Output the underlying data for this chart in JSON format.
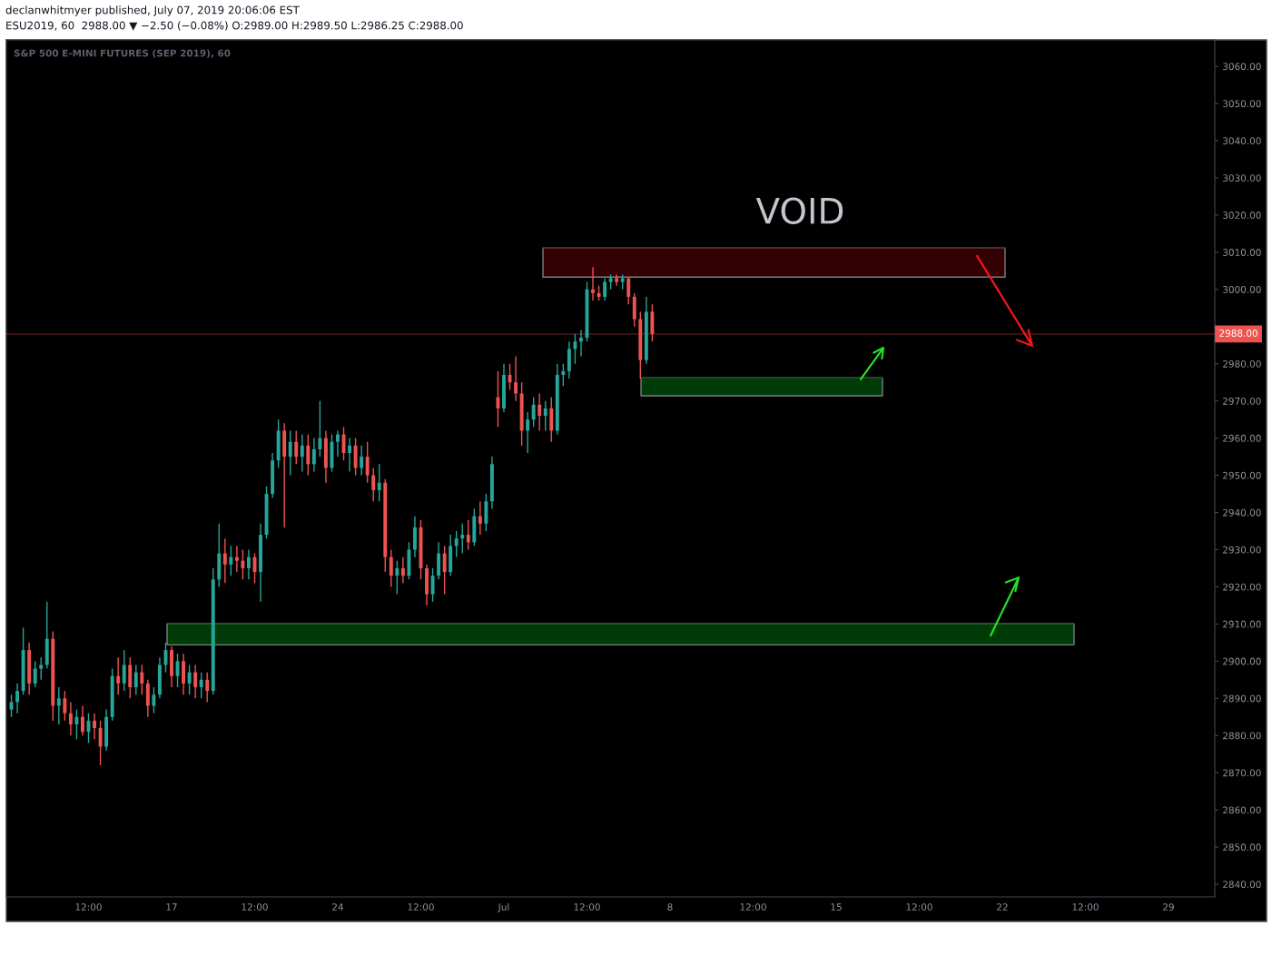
{
  "chart_data": {
    "type": "candlestick",
    "title": "S&P 500 E-MINI FUTURES (SEP 2019), 60",
    "subtitle": "ESU2019, 60  2988.00 ▼ −2.50 (−0.08%) O:2989.00 H:2989.50 L:2986.25 C:2988.00",
    "annotations": [
      "declanwhitmyer published, July 07, 2019 20:06:06 EST",
      "VOID"
    ],
    "x": [
      "2019-06-10T06:00",
      "2019-06-10T12:00",
      "2019-06-10T18:00",
      "2019-06-11T00:00",
      "2019-06-11T06:00",
      "2019-06-11T12:00",
      "2019-06-11T18:00",
      "2019-06-12T00:00",
      "2019-06-12T06:00",
      "2019-06-12T12:00",
      "2019-06-12T18:00",
      "2019-06-13T00:00",
      "2019-06-13T06:00",
      "2019-06-13T12:00",
      "2019-06-13T18:00",
      "2019-06-14T00:00",
      "2019-06-14T06:00",
      "2019-06-14T12:00",
      "2019-06-14T18:00",
      "2019-06-15T00:00",
      "2019-06-15T06:00",
      "2019-06-15T12:00",
      "2019-06-15T18:00",
      "2019-06-16T00:00",
      "2019-06-16T06:00",
      "2019-06-16T12:00",
      "2019-06-16T18:00",
      "2019-06-17T00:00",
      "2019-06-17T06:00",
      "2019-06-17T12:00",
      "2019-06-17T18:00",
      "2019-06-18T00:00",
      "2019-06-18T06:00",
      "2019-06-18T12:00",
      "2019-06-18T18:00",
      "2019-06-19T00:00",
      "2019-06-19T06:00",
      "2019-06-19T12:00",
      "2019-06-19T18:00",
      "2019-06-20T00:00",
      "2019-06-20T06:00",
      "2019-06-20T12:00",
      "2019-06-20T18:00",
      "2019-06-21T00:00",
      "2019-06-21T06:00",
      "2019-06-21T12:00",
      "2019-06-21T18:00",
      "2019-06-22T00:00",
      "2019-06-22T06:00",
      "2019-06-22T12:00",
      "2019-06-22T18:00",
      "2019-06-23T00:00",
      "2019-06-23T06:00",
      "2019-06-23T12:00",
      "2019-06-23T18:00",
      "2019-06-24T00:00",
      "2019-06-24T06:00",
      "2019-06-24T12:00",
      "2019-06-24T18:00",
      "2019-06-25T00:00",
      "2019-06-25T06:00",
      "2019-06-25T12:00",
      "2019-06-25T18:00",
      "2019-06-26T00:00",
      "2019-06-26T06:00",
      "2019-06-26T12:00",
      "2019-06-26T18:00",
      "2019-06-27T00:00",
      "2019-06-27T06:00",
      "2019-06-27T12:00",
      "2019-06-27T18:00",
      "2019-06-28T00:00",
      "2019-06-28T06:00",
      "2019-06-28T12:00",
      "2019-06-28T18:00",
      "2019-06-29T00:00",
      "2019-06-29T06:00",
      "2019-06-29T12:00",
      "2019-06-29T18:00",
      "2019-06-30T00:00",
      "2019-06-30T06:00",
      "2019-06-30T12:00",
      "2019-06-30T18:00",
      "2019-07-01T00:00",
      "2019-07-01T06:00",
      "2019-07-01T12:00",
      "2019-07-01T18:00",
      "2019-07-02T00:00",
      "2019-07-02T06:00",
      "2019-07-02T12:00",
      "2019-07-02T18:00",
      "2019-07-03T00:00",
      "2019-07-03T06:00",
      "2019-07-03T12:00",
      "2019-07-03T18:00",
      "2019-07-04T00:00",
      "2019-07-04T06:00",
      "2019-07-04T12:00",
      "2019-07-04T18:00",
      "2019-07-05T00:00",
      "2019-07-05T06:00",
      "2019-07-05T12:00",
      "2019-07-05T18:00",
      "2019-07-06T00:00",
      "2019-07-06T06:00",
      "2019-07-06T12:00",
      "2019-07-06T18:00",
      "2019-07-07T00:00",
      "2019-07-07T06:00"
    ],
    "ohlc": [
      [
        2887,
        2891,
        2885,
        2889
      ],
      [
        2889,
        2894,
        2886,
        2892
      ],
      [
        2892,
        2909,
        2891,
        2903
      ],
      [
        2903,
        2905,
        2891,
        2894
      ],
      [
        2894,
        2900,
        2893,
        2898
      ],
      [
        2898,
        2901,
        2895,
        2899
      ],
      [
        2899,
        2916,
        2898,
        2906
      ],
      [
        2906,
        2908,
        2884,
        2888
      ],
      [
        2888,
        2893,
        2883,
        2890
      ],
      [
        2890,
        2892,
        2884,
        2886
      ],
      [
        2886,
        2889,
        2880,
        2883
      ],
      [
        2883,
        2887,
        2879,
        2885
      ],
      [
        2885,
        2888,
        2880,
        2881
      ],
      [
        2881,
        2886,
        2878,
        2884
      ],
      [
        2884,
        2886,
        2879,
        2882
      ],
      [
        2882,
        2884,
        2872,
        2877
      ],
      [
        2877,
        2887,
        2876,
        2885
      ],
      [
        2885,
        2898,
        2884,
        2896
      ],
      [
        2896,
        2901,
        2891,
        2894
      ],
      [
        2894,
        2903,
        2892,
        2899
      ],
      [
        2899,
        2901,
        2890,
        2893
      ],
      [
        2893,
        2899,
        2891,
        2897
      ],
      [
        2897,
        2899,
        2891,
        2894
      ],
      [
        2894,
        2895,
        2885,
        2888
      ],
      [
        2888,
        2893,
        2886,
        2891
      ],
      [
        2891,
        2901,
        2890,
        2899
      ],
      [
        2899,
        2905,
        2897,
        2903
      ],
      [
        2903,
        2904,
        2893,
        2896
      ],
      [
        2896,
        2902,
        2893,
        2900
      ],
      [
        2900,
        2902,
        2891,
        2894
      ],
      [
        2894,
        2899,
        2891,
        2897
      ],
      [
        2897,
        2899,
        2890,
        2893
      ],
      [
        2893,
        2897,
        2890,
        2895
      ],
      [
        2895,
        2897,
        2889,
        2892
      ],
      [
        2892,
        2925,
        2891,
        2922
      ],
      [
        2922,
        2937,
        2920,
        2929
      ],
      [
        2929,
        2933,
        2921,
        2926
      ],
      [
        2926,
        2931,
        2923,
        2928
      ],
      [
        2928,
        2931,
        2924,
        2927
      ],
      [
        2927,
        2930,
        2922,
        2925
      ],
      [
        2925,
        2930,
        2922,
        2928
      ],
      [
        2928,
        2929,
        2921,
        2924
      ],
      [
        2924,
        2937,
        2916,
        2934
      ],
      [
        2934,
        2947,
        2933,
        2945
      ],
      [
        2945,
        2956,
        2944,
        2954
      ],
      [
        2954,
        2965,
        2952,
        2962
      ],
      [
        2962,
        2964,
        2936,
        2955
      ],
      [
        2955,
        2962,
        2950,
        2959
      ],
      [
        2959,
        2962,
        2953,
        2955
      ],
      [
        2955,
        2961,
        2951,
        2958
      ],
      [
        2958,
        2961,
        2950,
        2953
      ],
      [
        2953,
        2960,
        2951,
        2957
      ],
      [
        2957,
        2970,
        2955,
        2960
      ],
      [
        2960,
        2962,
        2948,
        2952
      ],
      [
        2952,
        2961,
        2951,
        2959
      ],
      [
        2959,
        2962,
        2955,
        2961
      ],
      [
        2961,
        2963,
        2954,
        2956
      ],
      [
        2956,
        2960,
        2951,
        2958
      ],
      [
        2958,
        2960,
        2950,
        2952
      ],
      [
        2952,
        2958,
        2950,
        2955
      ],
      [
        2955,
        2959,
        2948,
        2950
      ],
      [
        2950,
        2952,
        2943,
        2946
      ],
      [
        2946,
        2953,
        2943,
        2948
      ],
      [
        2948,
        2949,
        2924,
        2928
      ],
      [
        2928,
        2930,
        2920,
        2923
      ],
      [
        2923,
        2927,
        2918,
        2925
      ],
      [
        2925,
        2928,
        2921,
        2923
      ],
      [
        2923,
        2932,
        2922,
        2930
      ],
      [
        2930,
        2939,
        2928,
        2936
      ],
      [
        2936,
        2938,
        2922,
        2925
      ],
      [
        2925,
        2926,
        2915,
        2918
      ],
      [
        2918,
        2925,
        2916,
        2923
      ],
      [
        2923,
        2932,
        2922,
        2929
      ],
      [
        2929,
        2931,
        2918,
        2924
      ],
      [
        2924,
        2934,
        2923,
        2931
      ],
      [
        2931,
        2935,
        2928,
        2933
      ],
      [
        2933,
        2937,
        2929,
        2934
      ],
      [
        2934,
        2938,
        2930,
        2932
      ],
      [
        2932,
        2941,
        2931,
        2939
      ],
      [
        2939,
        2943,
        2934,
        2937
      ],
      [
        2937,
        2945,
        2935,
        2943
      ],
      [
        2943,
        2955,
        2941,
        2953
      ],
      [
        2971,
        2978,
        2963,
        2968
      ],
      [
        2968,
        2980,
        2967,
        2977
      ],
      [
        2977,
        2980,
        2973,
        2975
      ],
      [
        2975,
        2982,
        2970,
        2972
      ],
      [
        2972,
        2975,
        2958,
        2962
      ],
      [
        2962,
        2967,
        2956,
        2965
      ],
      [
        2965,
        2971,
        2963,
        2969
      ],
      [
        2969,
        2972,
        2962,
        2966
      ],
      [
        2966,
        2970,
        2962,
        2968
      ],
      [
        2968,
        2971,
        2959,
        2962
      ],
      [
        2962,
        2980,
        2961,
        2977
      ],
      [
        2977,
        2980,
        2974,
        2978
      ],
      [
        2978,
        2986,
        2976,
        2984
      ],
      [
        2984,
        2988,
        2980,
        2986
      ],
      [
        2986,
        2989,
        2982,
        2987
      ],
      [
        2987,
        3002,
        2986,
        3000
      ],
      [
        3000,
        3006,
        2997,
        2999
      ],
      [
        2999,
        3001,
        2997,
        2998
      ],
      [
        2998,
        3003,
        2997,
        3002
      ],
      [
        3002,
        3004,
        3000,
        3003
      ],
      [
        3003,
        3004,
        3001,
        3002
      ],
      [
        3002,
        3004,
        3000,
        3003
      ],
      [
        3003,
        3003,
        2996,
        2998
      ],
      [
        2998,
        2999,
        2990,
        2992
      ],
      [
        2992,
        2994,
        2976,
        2981
      ],
      [
        2981,
        2998,
        2980,
        2994
      ],
      [
        2994,
        2996,
        2986,
        2988
      ]
    ],
    "colors": [
      "#26a69a",
      "#26a69a",
      "#26a69a",
      "#ef5350",
      "#26a69a",
      "#26a69a",
      "#26a69a",
      "#ef5350",
      "#26a69a",
      "#ef5350",
      "#ef5350",
      "#26a69a",
      "#ef5350",
      "#26a69a",
      "#ef5350",
      "#ef5350",
      "#26a69a",
      "#26a69a",
      "#ef5350",
      "#26a69a",
      "#ef5350",
      "#26a69a",
      "#ef5350",
      "#ef5350",
      "#26a69a",
      "#26a69a",
      "#26a69a",
      "#ef5350",
      "#26a69a",
      "#ef5350",
      "#26a69a",
      "#ef5350",
      "#26a69a",
      "#ef5350",
      "#26a69a",
      "#26a69a",
      "#ef5350",
      "#26a69a",
      "#ef5350",
      "#ef5350",
      "#26a69a",
      "#ef5350",
      "#26a69a",
      "#26a69a",
      "#26a69a",
      "#26a69a",
      "#ef5350",
      "#26a69a",
      "#ef5350",
      "#26a69a",
      "#ef5350",
      "#26a69a",
      "#26a69a",
      "#ef5350",
      "#26a69a",
      "#26a69a",
      "#ef5350",
      "#26a69a",
      "#ef5350",
      "#26a69a",
      "#ef5350",
      "#ef5350",
      "#26a69a",
      "#ef5350",
      "#ef5350",
      "#26a69a",
      "#ef5350",
      "#26a69a",
      "#26a69a",
      "#ef5350",
      "#ef5350",
      "#26a69a",
      "#26a69a",
      "#ef5350",
      "#26a69a",
      "#26a69a",
      "#26a69a",
      "#ef5350",
      "#26a69a",
      "#ef5350",
      "#26a69a",
      "#26a69a",
      "#ef5350",
      "#26a69a",
      "#ef5350",
      "#ef5350",
      "#ef5350",
      "#26a69a",
      "#26a69a",
      "#ef5350",
      "#26a69a",
      "#ef5350",
      "#26a69a",
      "#26a69a",
      "#26a69a",
      "#26a69a",
      "#26a69a",
      "#26a69a",
      "#ef5350",
      "#ef5350",
      "#26a69a",
      "#26a69a",
      "#ef5350",
      "#26a69a",
      "#ef5350",
      "#ef5350",
      "#ef5350",
      "#26a69a",
      "#ef5350"
    ],
    "xlim": [
      "2019-06-10T00:55",
      "2019-07-30T22:50"
    ],
    "xticks": [
      {
        "value": "2019-06-13T12:00",
        "label": "12:00"
      },
      {
        "value": "2019-06-17",
        "label": "17"
      },
      {
        "value": "2019-06-20T12:00",
        "label": "12:00"
      },
      {
        "value": "2019-06-24",
        "label": "24"
      },
      {
        "value": "2019-06-27T12:00",
        "label": "12:00"
      },
      {
        "value": "2019-07-01",
        "label": "Jul"
      },
      {
        "value": "2019-07-04T12:00",
        "label": "12:00"
      },
      {
        "value": "2019-07-08",
        "label": "8"
      },
      {
        "value": "2019-07-11T12:00",
        "label": "12:00"
      },
      {
        "value": "2019-07-15",
        "label": "15"
      },
      {
        "value": "2019-07-18T12:00",
        "label": "12:00"
      },
      {
        "value": "2019-07-22",
        "label": "22"
      },
      {
        "value": "2019-07-25T12:00",
        "label": "12:00"
      },
      {
        "value": "2019-07-29",
        "label": "29"
      }
    ],
    "ylim": [
      2836.6,
      3067.1
    ],
    "yticks": [
      {
        "value": 2840,
        "label": "2840.00"
      },
      {
        "value": 2850,
        "label": "2850.00"
      },
      {
        "value": 2860,
        "label": "2860.00"
      },
      {
        "value": 2870,
        "label": "2870.00"
      },
      {
        "value": 2880,
        "label": "2880.00"
      },
      {
        "value": 2890,
        "label": "2890.00"
      },
      {
        "value": 2900,
        "label": "2900.00"
      },
      {
        "value": 2910,
        "label": "2910.00"
      },
      {
        "value": 2920,
        "label": "2920.00"
      },
      {
        "value": 2930,
        "label": "2930.00"
      },
      {
        "value": 2940,
        "label": "2940.00"
      },
      {
        "value": 2950,
        "label": "2950.00"
      },
      {
        "value": 2960,
        "label": "2960.00"
      },
      {
        "value": 2970,
        "label": "2970.00"
      },
      {
        "value": 2980,
        "label": "2980.00"
      },
      {
        "value": 3000,
        "label": "3000.00"
      },
      {
        "value": 3010,
        "label": "3010.00"
      },
      {
        "value": 3020,
        "label": "3020.00"
      },
      {
        "value": 3030,
        "label": "3030.00"
      },
      {
        "value": 3040,
        "label": "3040.00"
      },
      {
        "value": 3050,
        "label": "3050.00"
      },
      {
        "value": 3060,
        "label": "3060.00"
      }
    ],
    "ref_lines": [
      {
        "axis": "y",
        "value": 2988.0,
        "label": "2988.00",
        "color": "#ef5350"
      }
    ],
    "series": [
      {
        "type": "line",
        "color": "#330004",
        "x": [
          "2019-07-02T15:30",
          "2019-07-22T02:45"
        ],
        "values": [
          3011.2,
          3011.2
        ],
        "lower": [
          3003.3,
          3003.3
        ],
        "upper": [
          3011.2,
          3011.2
        ]
      },
      {
        "type": "line",
        "color": "#003a06",
        "x": [
          "2019-07-06T18:40",
          "2019-07-16T22:50"
        ],
        "values": [
          2976.2,
          2976.2
        ],
        "lower": [
          2971.4,
          2971.4
        ],
        "upper": [
          2976.2,
          2976.2
        ]
      },
      {
        "type": "line",
        "color": "#003a06",
        "x": [
          "2019-06-16T19:25",
          "2019-07-25T00:30"
        ],
        "values": [
          2910.1,
          2910.1
        ],
        "lower": [
          2904.4,
          2904.4
        ],
        "upper": [
          2910.1,
          2910.1
        ]
      },
      {
        "type": "line",
        "color": "#f01818",
        "x": [
          "2019-07-20T22:25",
          "2019-07-23T06:15",
          "2019-07-23T02:25",
          "2019-07-23T06:15",
          "2019-07-22T14:50"
        ],
        "values": [
          3009.0,
          2984.8,
          2989.1,
          2984.8,
          2986.4
        ]
      },
      {
        "type": "line",
        "color": "#22e022",
        "x": [
          "2019-07-16T00:45",
          "2019-07-16T23:45",
          "2019-07-16T13:55",
          "2019-07-16T23:45",
          "2019-07-16T22:15"
        ],
        "values": [
          2975.8,
          2984.3,
          2983.0,
          2984.3,
          2981.4
        ]
      },
      {
        "type": "line",
        "color": "#22e022",
        "x": [
          "2019-07-21T12:15",
          "2019-07-22T16:30",
          "2019-07-22T03:35",
          "2019-07-22T16:30",
          "2019-07-22T13:15"
        ],
        "values": [
          2906.9,
          2922.5,
          2921.2,
          2922.5,
          2918.9
        ]
      }
    ]
  }
}
